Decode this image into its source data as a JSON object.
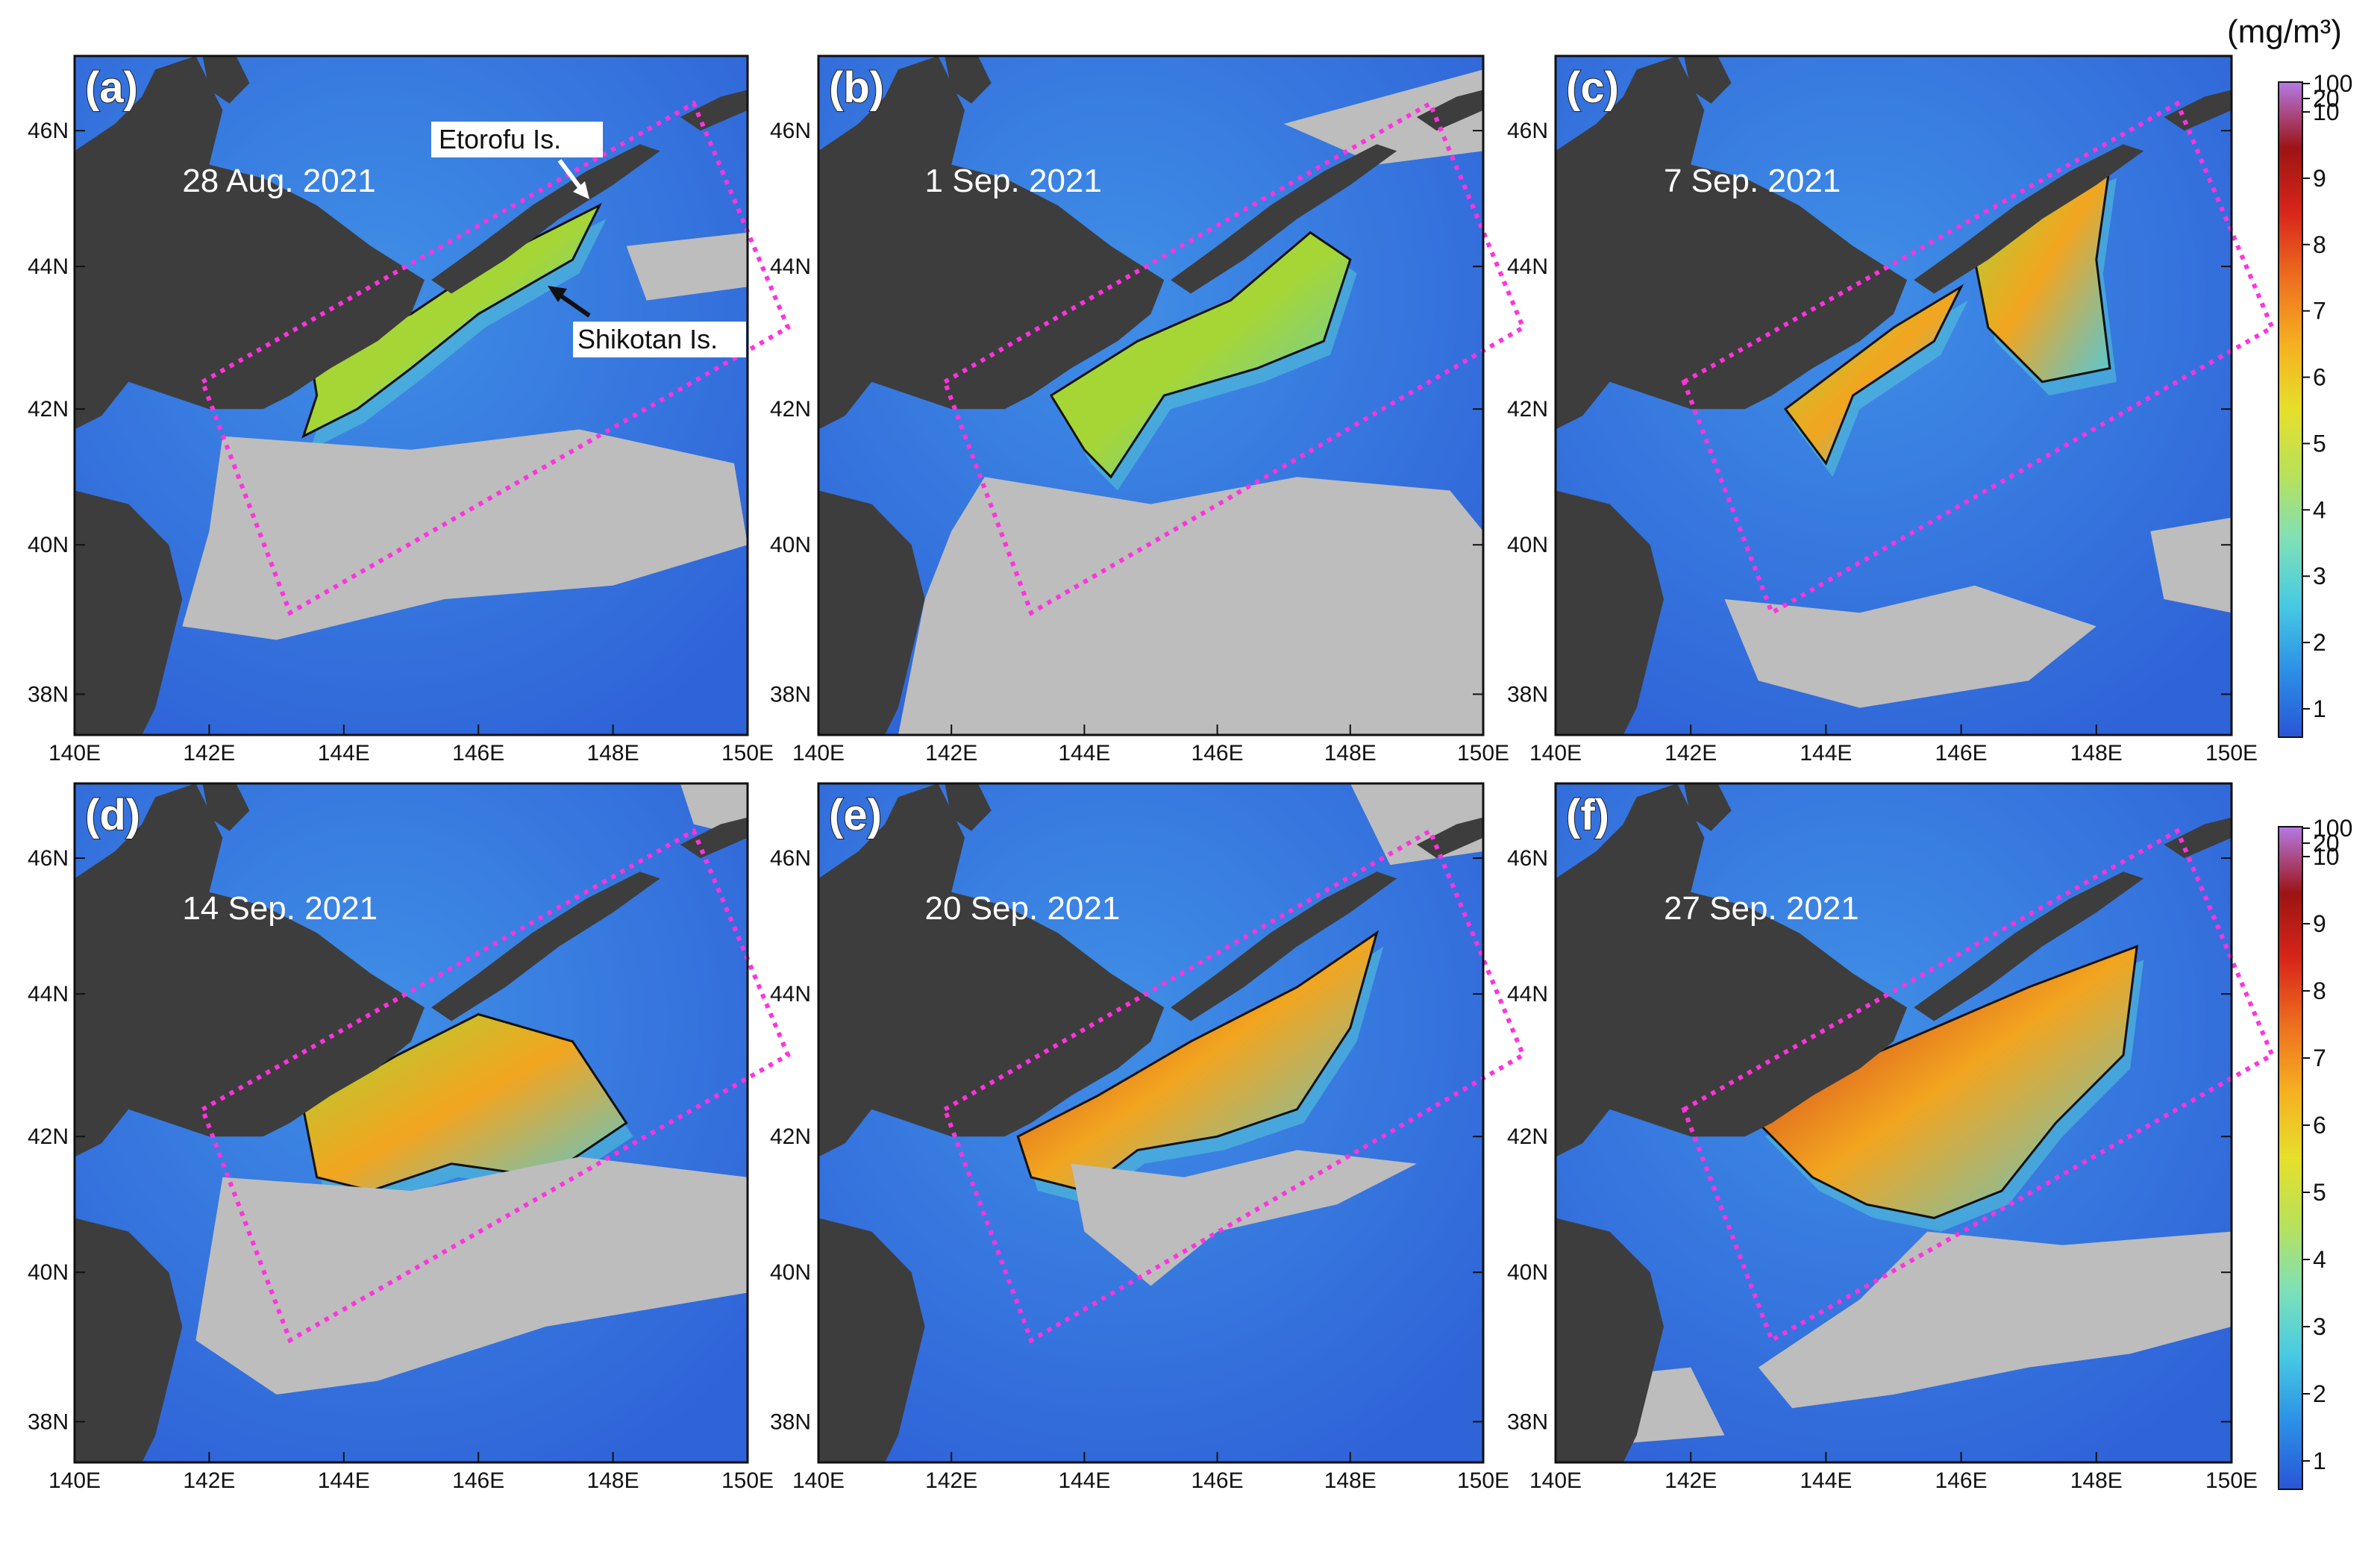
{
  "figure": {
    "colorbar_unit": "(mg/m³)",
    "colorbar_ticks": [
      "100",
      "20",
      "10",
      "9",
      "8",
      "7",
      "6",
      "5",
      "4",
      "3",
      "2",
      "1"
    ],
    "lon_ticks": [
      "140E",
      "142E",
      "144E",
      "146E",
      "148E",
      "150E"
    ],
    "lat_ticks": [
      "46N",
      "44N",
      "42N",
      "40N",
      "38N"
    ],
    "annotations": {
      "etorofu": "Etorofu Is.",
      "shikotan": "Shikotan Is."
    }
  },
  "panels": [
    {
      "id": "a",
      "label": "(a)",
      "date": "28 Aug. 2021"
    },
    {
      "id": "b",
      "label": "(b)",
      "date": "1 Sep. 2021"
    },
    {
      "id": "c",
      "label": "(c)",
      "date": "7 Sep. 2021"
    },
    {
      "id": "d",
      "label": "(d)",
      "date": "14 Sep. 2021"
    },
    {
      "id": "e",
      "label": "(e)",
      "date": "20 Sep. 2021"
    },
    {
      "id": "f",
      "label": "(f)",
      "date": "27 Sep. 2021"
    }
  ],
  "colors": {
    "ocean": "#2f63d8",
    "ocean_mid": "#3f8ee6",
    "land": "#3d3d3d",
    "cloud": "#bdbdbd",
    "bloom_low": "#53c9d9",
    "bloom_mid": "#a6d636",
    "bloom_high": "#f2a51f",
    "bloom_peak": "#c81e1e",
    "box": "#ff33dd",
    "colorbar_stops": [
      "#2a55d6",
      "#2b8fe6",
      "#47c9e3",
      "#7ee0b8",
      "#b8e15a",
      "#e6df2b",
      "#f5b021",
      "#ee6f1f",
      "#d8261a",
      "#9c1414",
      "#b57ae6"
    ]
  }
}
